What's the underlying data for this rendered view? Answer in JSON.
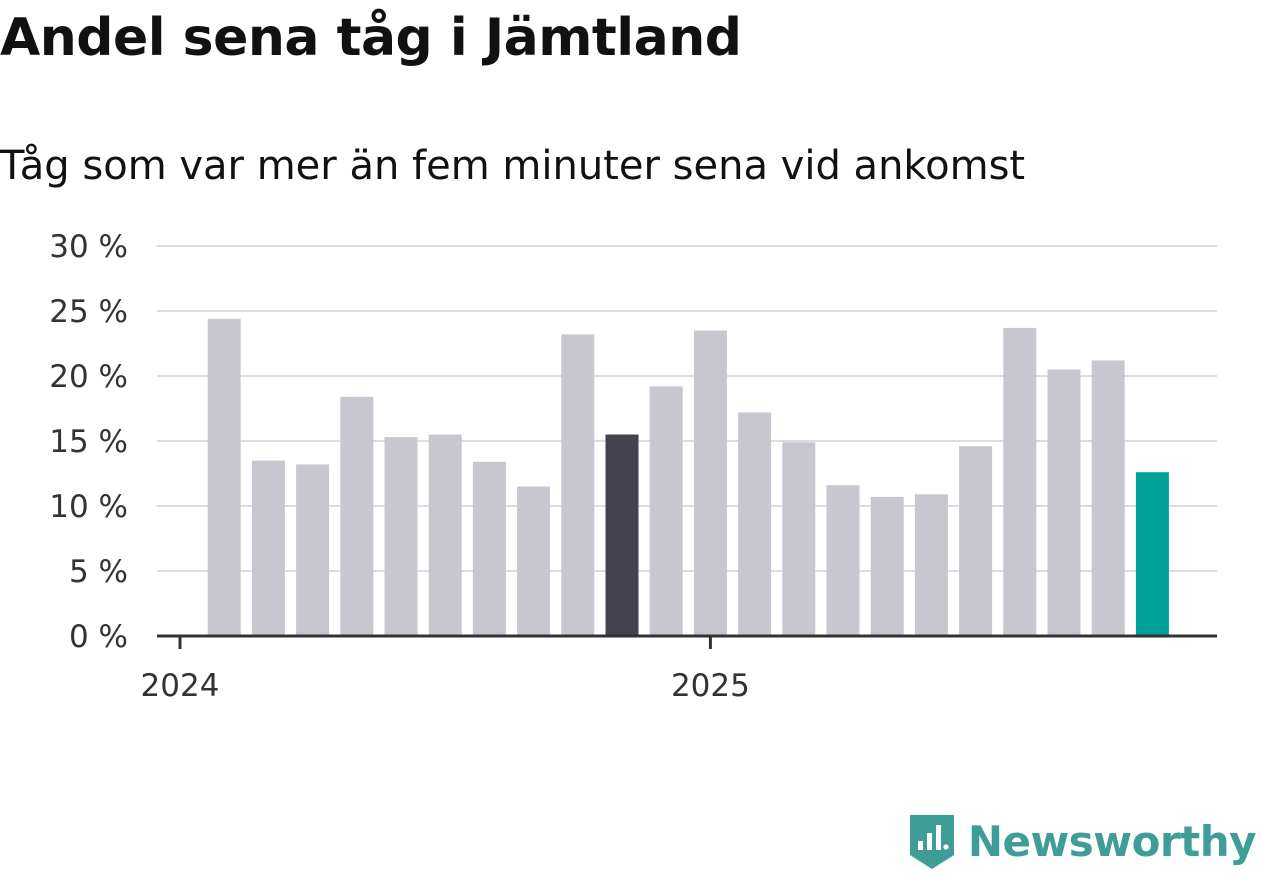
{
  "title": "Andel sena tåg i Jämtland",
  "subtitle": "Tåg som var mer än fem minuter sena vid ankomst",
  "brand": {
    "name": "Newsworthy",
    "color": "#3e9d97"
  },
  "colors": {
    "bar_default": "#c8c7cf",
    "bar_highlight_dark": "#43424e",
    "bar_latest": "#00a19a",
    "gridline": "#dddddd",
    "axis": "#333333"
  },
  "chart_data": {
    "type": "bar",
    "title": "Andel sena tåg i Jämtland",
    "subtitle": "Tåg som var mer än fem minuter sena vid ankomst",
    "xlabel": "",
    "ylabel": "",
    "ylim": [
      0,
      30
    ],
    "y_ticks": [
      0,
      5,
      10,
      15,
      20,
      25,
      30
    ],
    "y_tick_labels": [
      "0 %",
      "5 %",
      "10 %",
      "15 %",
      "20 %",
      "25 %",
      "30 %"
    ],
    "x_tick_labels": [
      "2024",
      "2025"
    ],
    "grid": true,
    "unit": "%",
    "categories": [
      "2024-01",
      "2024-02",
      "2024-03",
      "2024-04",
      "2024-05",
      "2024-06",
      "2024-07",
      "2024-08",
      "2024-09",
      "2024-10",
      "2024-11",
      "2024-12",
      "2025-01",
      "2025-02",
      "2025-03",
      "2025-04",
      "2025-05",
      "2025-06",
      "2025-07",
      "2025-08",
      "2025-09",
      "2025-10",
      "2025-11",
      "2025-12"
    ],
    "values": [
      null,
      24.4,
      13.5,
      13.2,
      18.4,
      15.3,
      15.5,
      13.4,
      11.5,
      23.2,
      15.5,
      19.2,
      23.5,
      17.2,
      14.9,
      11.6,
      10.7,
      10.9,
      14.6,
      23.7,
      20.5,
      21.2,
      12.6,
      null
    ],
    "highlights": {
      "dark": [
        "2024-11"
      ],
      "latest": [
        "2025-11"
      ]
    }
  }
}
